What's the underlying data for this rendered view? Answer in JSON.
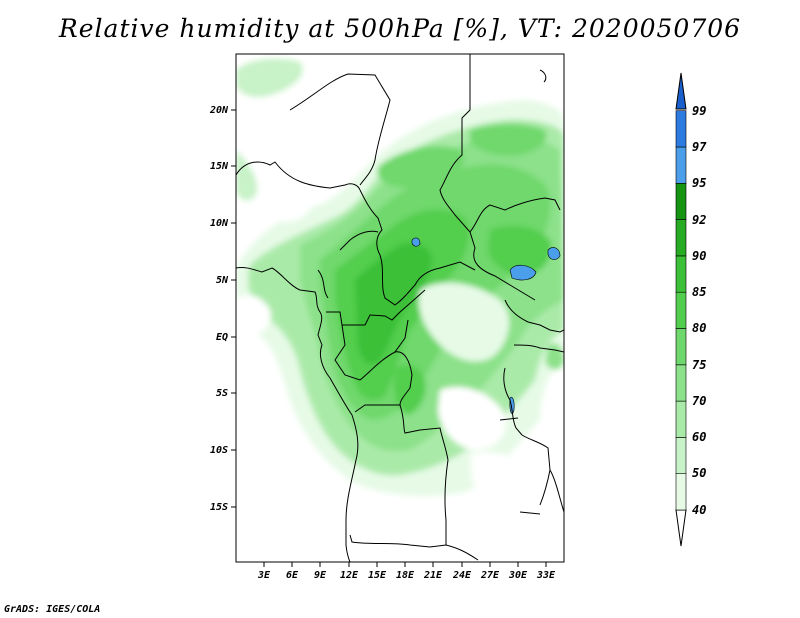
{
  "title": "Relative humidity at 500hPa [%], VT: 2020050706",
  "credit": "GrADS: IGES/COLA",
  "map": {
    "lat_ticks": [
      "20N",
      "15N",
      "10N",
      "5N",
      "EQ",
      "5S",
      "10S",
      "15S"
    ],
    "lon_ticks": [
      "3E",
      "6E",
      "9E",
      "12E",
      "15E",
      "18E",
      "21E",
      "24E",
      "27E",
      "30E",
      "33E"
    ]
  },
  "colorbar": {
    "levels": [
      "40",
      "50",
      "60",
      "70",
      "75",
      "80",
      "85",
      "90",
      "92",
      "95",
      "97",
      "99"
    ],
    "colors": [
      "#ffffff",
      "#e6fae6",
      "#c8f2c8",
      "#aaeaa9",
      "#8ce18a",
      "#6fd86c",
      "#52ce4e",
      "#3bc037",
      "#27ab23",
      "#149410",
      "#4b9eea",
      "#2b7be0",
      "#1a5fcc"
    ]
  }
}
